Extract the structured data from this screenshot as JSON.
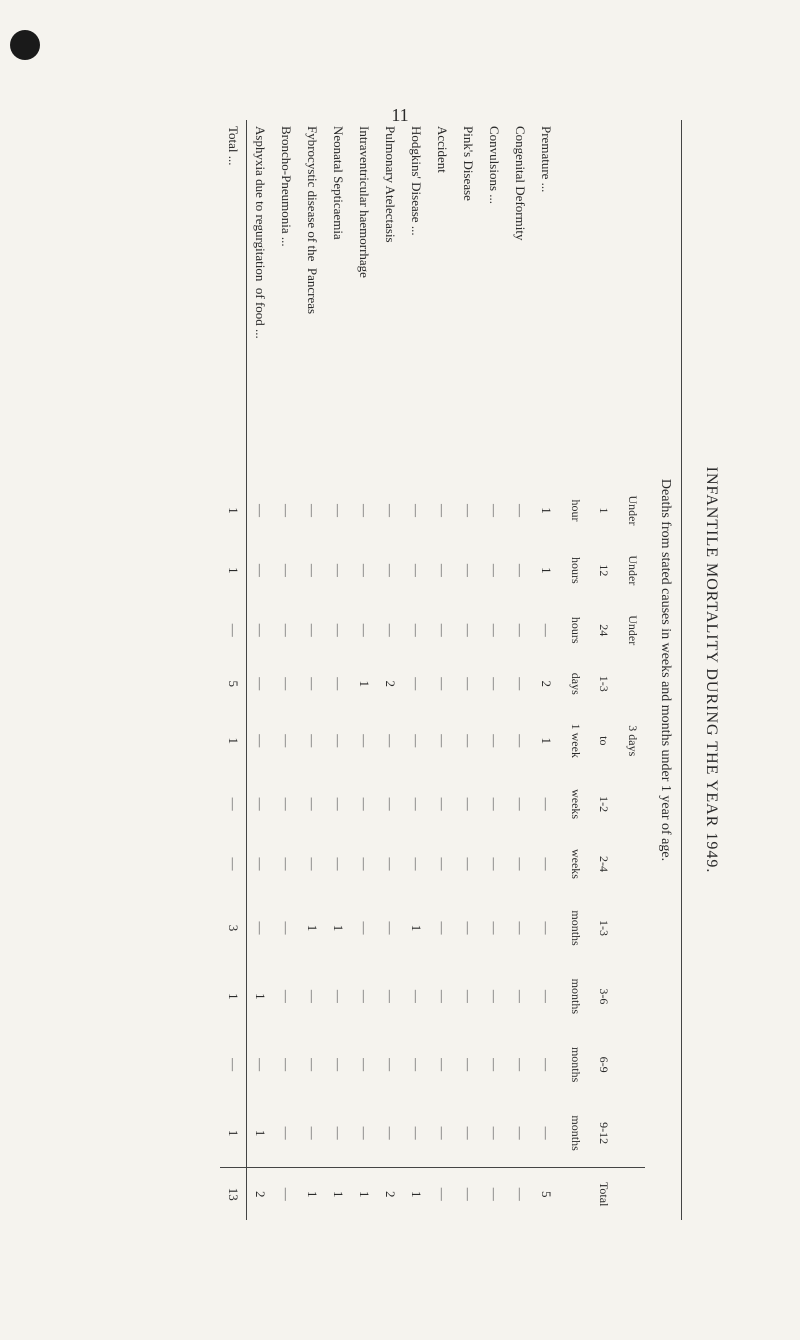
{
  "page_number": "11",
  "title": "INFANTILE MORTALITY DURING THE YEAR 1949.",
  "subtitle": "Deaths from stated causes in weeks and months under 1 year of age.",
  "columns": [
    {
      "label1": "Under",
      "label2": "1",
      "label3": "hour"
    },
    {
      "label1": "Under",
      "label2": "12",
      "label3": "hours"
    },
    {
      "label1": "Under",
      "label2": "24",
      "label3": "hours"
    },
    {
      "label1": "",
      "label2": "1-3",
      "label3": "days"
    },
    {
      "label1": "3 days",
      "label2": "to",
      "label3": "1 week"
    },
    {
      "label1": "",
      "label2": "1-2",
      "label3": "weeks"
    },
    {
      "label1": "",
      "label2": "2-4",
      "label3": "weeks"
    },
    {
      "label1": "",
      "label2": "1-3",
      "label3": "months"
    },
    {
      "label1": "",
      "label2": "3-6",
      "label3": "months"
    },
    {
      "label1": "",
      "label2": "6-9",
      "label3": "months"
    },
    {
      "label1": "",
      "label2": "9-12",
      "label3": "months"
    },
    {
      "label1": "",
      "label2": "Total",
      "label3": ""
    }
  ],
  "rows": [
    {
      "label": "Premature ...",
      "values": [
        "1",
        "1",
        "—",
        "2",
        "1",
        "—",
        "—",
        "—",
        "—",
        "—",
        "—",
        "5"
      ]
    },
    {
      "label": "Congenital Deformity",
      "values": [
        "—",
        "—",
        "—",
        "—",
        "—",
        "—",
        "—",
        "—",
        "—",
        "—",
        "—",
        "—"
      ]
    },
    {
      "label": "Convulsions ...",
      "values": [
        "—",
        "—",
        "—",
        "—",
        "—",
        "—",
        "—",
        "—",
        "—",
        "—",
        "—",
        "—"
      ]
    },
    {
      "label": "Pink's Disease",
      "values": [
        "—",
        "—",
        "—",
        "—",
        "—",
        "—",
        "—",
        "—",
        "—",
        "—",
        "—",
        "—"
      ]
    },
    {
      "label": "Accident",
      "values": [
        "—",
        "—",
        "—",
        "—",
        "—",
        "—",
        "—",
        "—",
        "—",
        "—",
        "—",
        "—"
      ]
    },
    {
      "label": "Hodgkins' Disease ...",
      "values": [
        "—",
        "—",
        "—",
        "—",
        "—",
        "—",
        "—",
        "1",
        "—",
        "—",
        "—",
        "1"
      ]
    },
    {
      "label": "Pulmonary Atelectasis",
      "values": [
        "—",
        "—",
        "—",
        "2",
        "—",
        "—",
        "—",
        "—",
        "—",
        "—",
        "—",
        "2"
      ]
    },
    {
      "label": "Intraventricular haemorrhage",
      "values": [
        "—",
        "—",
        "—",
        "1",
        "—",
        "—",
        "—",
        "—",
        "—",
        "—",
        "—",
        "1"
      ]
    },
    {
      "label": "Neonatal Septicaemia",
      "values": [
        "—",
        "—",
        "—",
        "—",
        "—",
        "—",
        "—",
        "1",
        "—",
        "—",
        "—",
        "1"
      ]
    },
    {
      "label": "Fybrocystic disease of the  Pancreas",
      "values": [
        "—",
        "—",
        "—",
        "—",
        "—",
        "—",
        "—",
        "1",
        "—",
        "—",
        "—",
        "1"
      ]
    },
    {
      "label": "Broncho-Pneumonia ...",
      "values": [
        "—",
        "—",
        "—",
        "—",
        "—",
        "—",
        "—",
        "—",
        "—",
        "—",
        "—",
        "—"
      ]
    },
    {
      "label": "Asphyxia due to regurgitation  of food ...",
      "values": [
        "—",
        "—",
        "—",
        "—",
        "—",
        "—",
        "—",
        "—",
        "1",
        "—",
        "1",
        "2"
      ]
    }
  ],
  "total_row": {
    "label": "Total ...",
    "values": [
      "1",
      "1",
      "—",
      "5",
      "1",
      "—",
      "—",
      "3",
      "1",
      "—",
      "1",
      "13"
    ]
  },
  "em_dash": "—",
  "colors": {
    "background": "#f5f3ee",
    "text": "#2a2a2a",
    "border": "#444444"
  }
}
